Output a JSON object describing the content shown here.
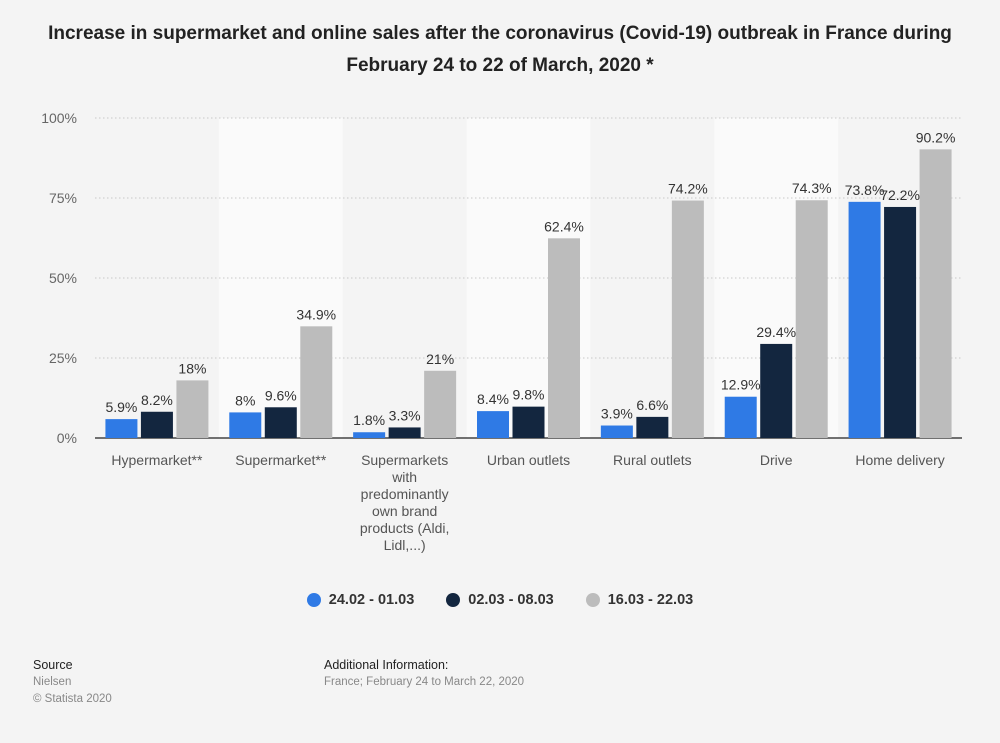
{
  "title": "Increase in supermarket and online sales after the coronavirus (Covid-19) outbreak in France during February 24 to 22 of March, 2020 *",
  "chart_data": {
    "type": "bar",
    "categories": [
      [
        "Hypermarket**"
      ],
      [
        "Supermarket**"
      ],
      [
        "Supermarkets",
        "with",
        "predominantly",
        "own brand",
        "products (Aldi,",
        "Lidl,...)"
      ],
      [
        "Urban outlets"
      ],
      [
        "Rural outlets"
      ],
      [
        "Drive"
      ],
      [
        "Home delivery"
      ]
    ],
    "series": [
      {
        "name": "24.02 - 01.03",
        "color": "#2f7ae5",
        "values": [
          5.9,
          8,
          1.8,
          8.4,
          3.9,
          12.9,
          73.8
        ],
        "labels": [
          "5.9%",
          "8%",
          "1.8%",
          "8.4%",
          "3.9%",
          "12.9%",
          "73.8%"
        ]
      },
      {
        "name": "02.03 - 08.03",
        "color": "#13263f",
        "values": [
          8.2,
          9.6,
          3.3,
          9.8,
          6.6,
          29.4,
          72.2
        ],
        "labels": [
          "8.2%",
          "9.6%",
          "3.3%",
          "9.8%",
          "6.6%",
          "29.4%",
          "72.2%"
        ]
      },
      {
        "name": "16.03 - 22.03",
        "color": "#bcbcbc",
        "values": [
          18,
          34.9,
          21,
          62.4,
          74.2,
          74.3,
          90.2
        ],
        "labels": [
          "18%",
          "34.9%",
          "21%",
          "62.4%",
          "74.2%",
          "74.3%",
          "90.2%"
        ]
      }
    ],
    "yticks": [
      "0%",
      "25%",
      "50%",
      "75%",
      "100%"
    ],
    "ylim": [
      0,
      100
    ],
    "grid": true,
    "legend_position": "bottom"
  },
  "footer": {
    "source_heading": "Source",
    "source_name": "Nielsen",
    "copyright": "© Statista 2020",
    "info_heading": "Additional Information:",
    "info_text": "France; February 24 to March 22, 2020"
  }
}
